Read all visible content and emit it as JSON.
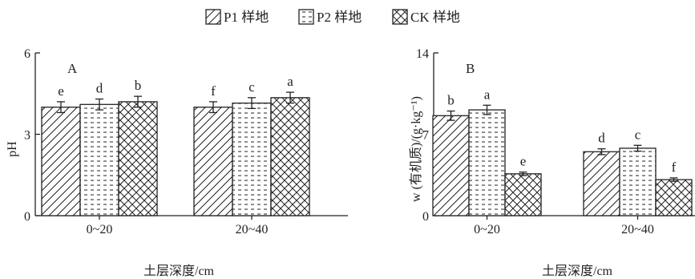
{
  "legend": [
    {
      "label": "P1 样地",
      "pattern": "diag"
    },
    {
      "label": "P2 样地",
      "pattern": "dash"
    },
    {
      "label": "CK 样地",
      "pattern": "cross"
    }
  ],
  "chart_data": [
    {
      "type": "bar",
      "panel_label": "A",
      "ylabel": "pH",
      "xlabel": "土层深度/cm",
      "categories": [
        "0~20",
        "20~40"
      ],
      "ylim": [
        0,
        6
      ],
      "yticks": [
        "0",
        "3",
        "6"
      ],
      "series": [
        {
          "name": "P1 样地",
          "values": [
            4.0,
            4.0
          ],
          "errors": [
            0.2,
            0.2
          ],
          "letters": [
            "e",
            "f"
          ]
        },
        {
          "name": "P2 样地",
          "values": [
            4.1,
            4.15
          ],
          "errors": [
            0.2,
            0.2
          ],
          "letters": [
            "d",
            "c"
          ]
        },
        {
          "name": "CK 样地",
          "values": [
            4.2,
            4.35
          ],
          "errors": [
            0.2,
            0.2
          ],
          "letters": [
            "b",
            "a"
          ]
        }
      ]
    },
    {
      "type": "bar",
      "panel_label": "B",
      "ylabel": "w (有机质)/(g·kg⁻¹)",
      "xlabel": "土层深度/cm",
      "categories": [
        "0~20",
        "20~40"
      ],
      "ylim": [
        0,
        14
      ],
      "yticks": [
        "0",
        "7",
        "14"
      ],
      "series": [
        {
          "name": "P1 样地",
          "values": [
            8.6,
            5.5
          ],
          "errors": [
            0.4,
            0.25
          ],
          "letters": [
            "b",
            "d"
          ]
        },
        {
          "name": "P2 样地",
          "values": [
            9.1,
            5.8
          ],
          "errors": [
            0.4,
            0.25
          ],
          "letters": [
            "a",
            "c"
          ]
        },
        {
          "name": "CK 样地",
          "values": [
            3.6,
            3.1
          ],
          "errors": [
            0.15,
            0.15
          ],
          "letters": [
            "e",
            "f"
          ]
        }
      ]
    }
  ]
}
